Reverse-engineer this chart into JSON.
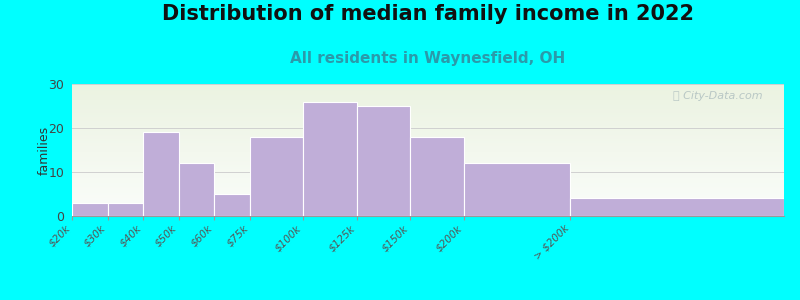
{
  "title": "Distribution of median family income in 2022",
  "subtitle": "All residents in Waynesfield, OH",
  "ylabel": "families",
  "categories": [
    "$20k",
    "$30k",
    "$40k",
    "$50k",
    "$60k",
    "$75k",
    "$100k",
    "$125k",
    "$150k",
    "$200k",
    "> $200k"
  ],
  "values": [
    3,
    3,
    19,
    12,
    5,
    18,
    26,
    25,
    18,
    12,
    4
  ],
  "bin_edges": [
    0,
    1,
    2,
    3,
    4,
    5,
    6.5,
    8,
    9.5,
    11,
    14,
    20
  ],
  "bar_color": "#c0aed8",
  "bar_edge_color": "#ffffff",
  "background_color": "#00ffff",
  "ylim": [
    0,
    30
  ],
  "yticks": [
    0,
    10,
    20,
    30
  ],
  "watermark": "Ⓜ City-Data.com",
  "title_fontsize": 15,
  "subtitle_fontsize": 11,
  "subtitle_color": "#2a9aaa",
  "watermark_color": "#b0c0c0"
}
